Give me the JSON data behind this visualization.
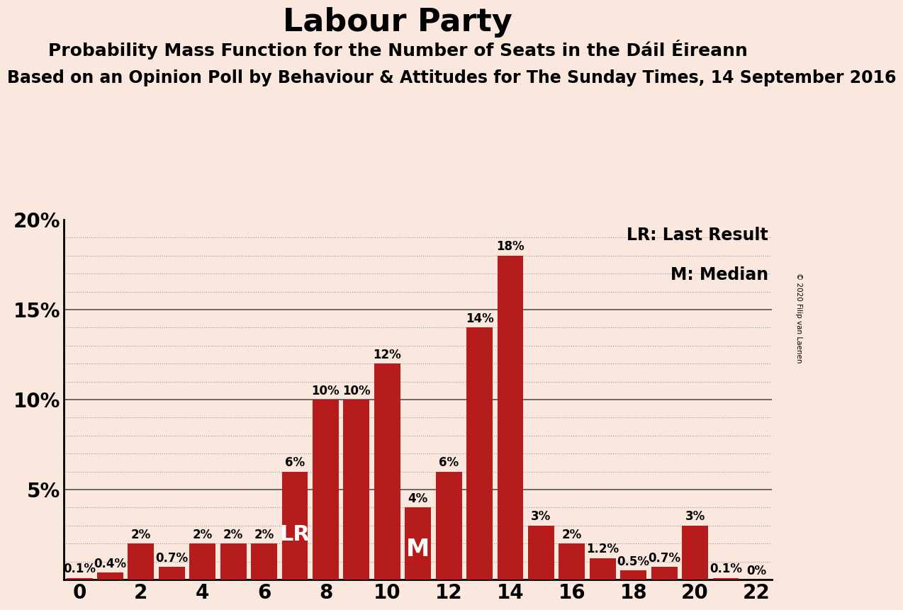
{
  "title": "Labour Party",
  "subtitle1": "Probability Mass Function for the Number of Seats in the Dáil Éireann",
  "subtitle2": "Based on an Opinion Poll by Behaviour & Attitudes for The Sunday Times, 14 September 2016",
  "copyright": "© 2020 Filip van Laenen",
  "legend1": "LR: Last Result",
  "legend2": "M: Median",
  "background_color": "#FAE8DF",
  "bar_color": "#B71C1C",
  "seats": [
    0,
    1,
    2,
    3,
    4,
    5,
    6,
    7,
    8,
    9,
    10,
    11,
    12,
    13,
    14,
    15,
    16,
    17,
    18,
    19,
    20,
    21,
    22
  ],
  "probabilities": [
    0.1,
    0.4,
    2.0,
    0.7,
    2.0,
    2.0,
    2.0,
    6.0,
    10.0,
    10.0,
    12.0,
    4.0,
    6.0,
    14.0,
    18.0,
    3.0,
    2.0,
    1.2,
    0.5,
    0.7,
    3.0,
    0.1,
    0.0
  ],
  "labels": [
    "0.1%",
    "0.4%",
    "2%",
    "0.7%",
    "2%",
    "2%",
    "2%",
    "6%",
    "10%",
    "10%",
    "12%",
    "4%",
    "6%",
    "14%",
    "18%",
    "3%",
    "2%",
    "1.2%",
    "0.5%",
    "0.7%",
    "3%",
    "0.1%",
    "0%"
  ],
  "lr_seat": 7,
  "median_seat": 11,
  "yticks": [
    0,
    5,
    10,
    15,
    20
  ],
  "ylim": [
    0,
    19.5
  ],
  "xticks": [
    0,
    2,
    4,
    6,
    8,
    10,
    12,
    14,
    16,
    18,
    20,
    22
  ],
  "xlim": [
    -0.5,
    22.5
  ],
  "title_fontsize": 32,
  "subtitle1_fontsize": 18,
  "subtitle2_fontsize": 17,
  "axis_tick_fontsize": 20,
  "bar_label_fontsize": 12,
  "legend_fontsize": 17,
  "lr_label_fontsize": 22,
  "m_label_fontsize": 24
}
